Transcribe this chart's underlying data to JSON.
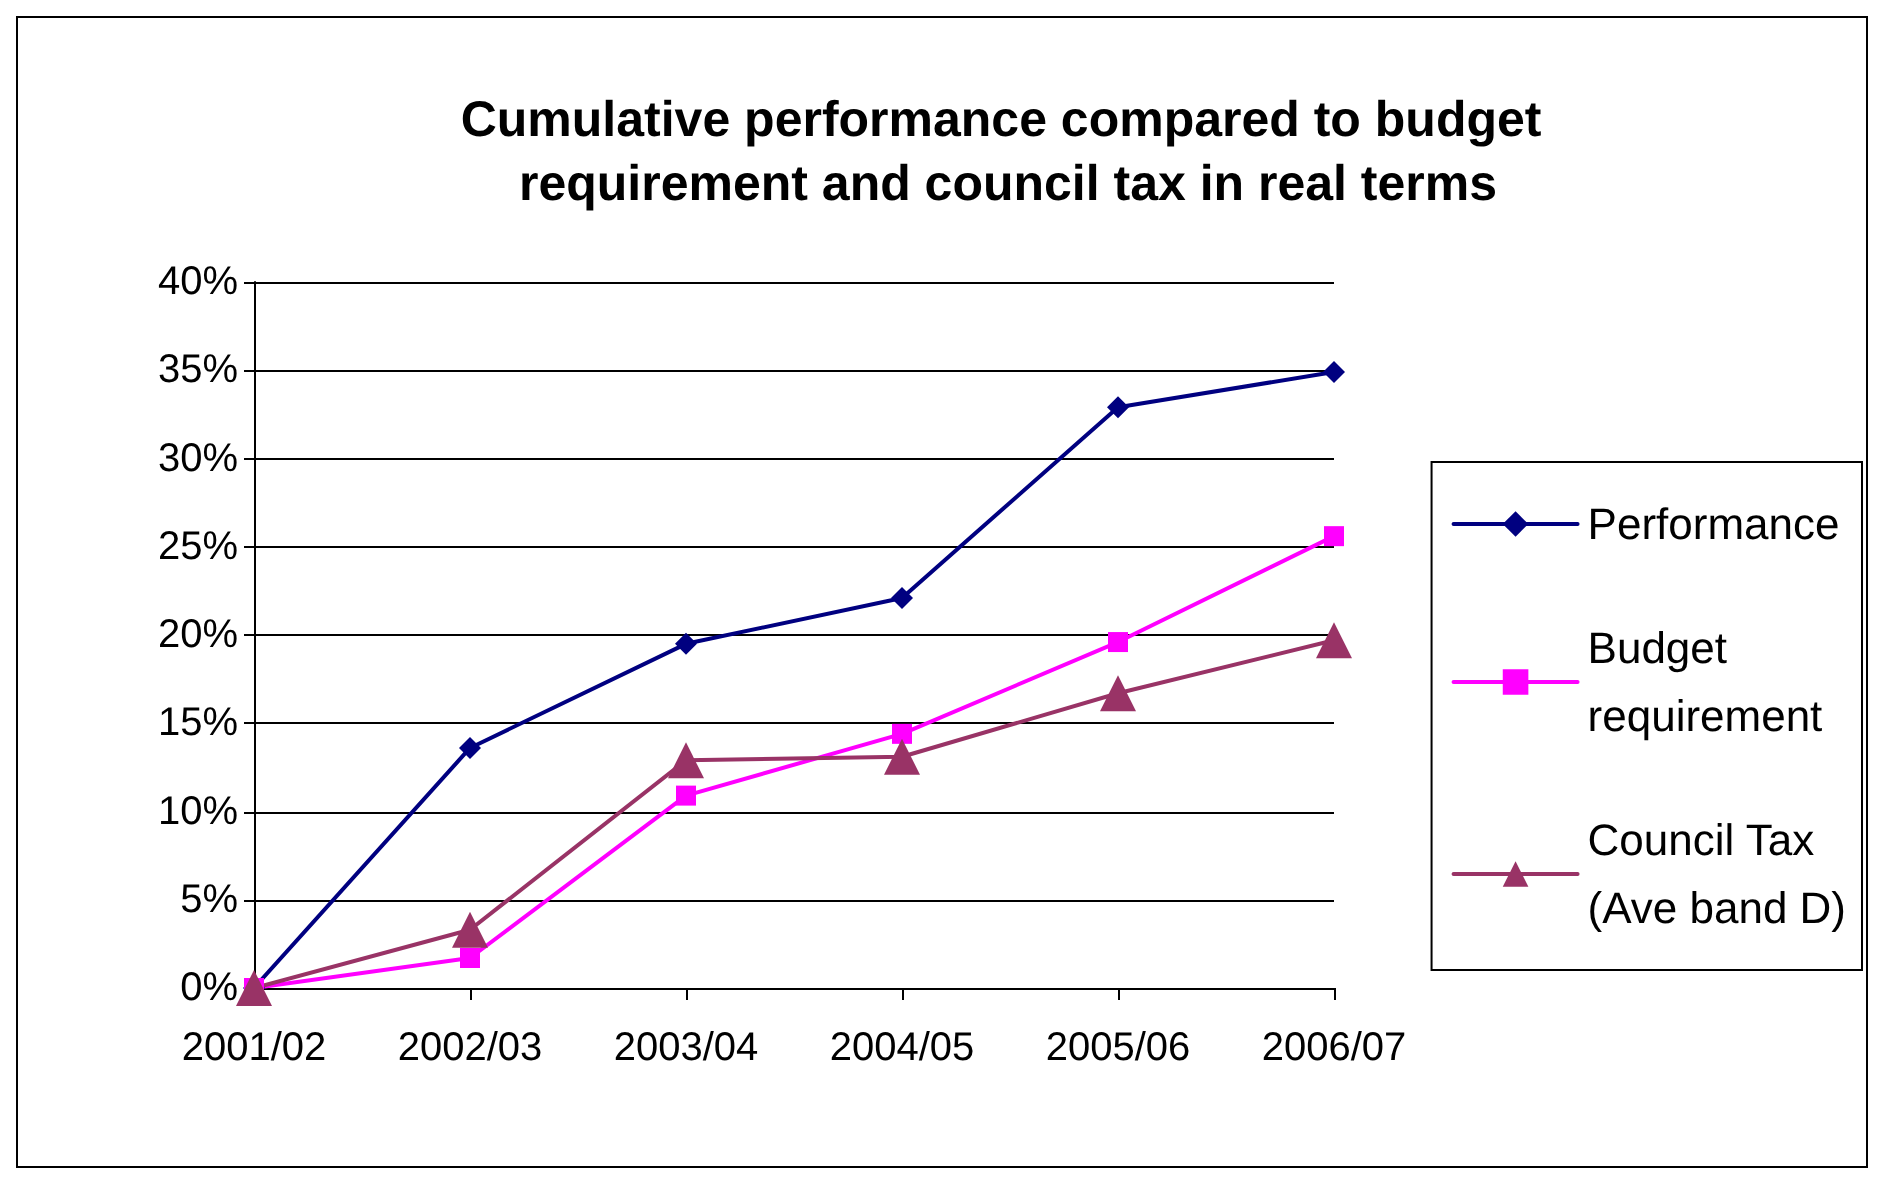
{
  "chart_data": {
    "type": "line",
    "title": "Cumulative performance compared to budget requirement and council tax in real terms",
    "categories": [
      "2001/02",
      "2002/03",
      "2003/04",
      "2004/05",
      "2005/06",
      "2006/07"
    ],
    "series": [
      {
        "name": "Performance",
        "color": "#000080",
        "marker": "diamond",
        "values": [
          0,
          13.6,
          19.5,
          22.1,
          32.9,
          34.9
        ]
      },
      {
        "name": "Budget\nrequirement",
        "color": "#ff00ff",
        "marker": "square",
        "values": [
          0,
          1.7,
          10.9,
          14.4,
          19.6,
          25.6
        ]
      },
      {
        "name": "Council Tax\n(Ave band D)",
        "color": "#993366",
        "marker": "triangle",
        "values": [
          0,
          3.3,
          12.9,
          13.1,
          16.7,
          19.7
        ]
      }
    ],
    "ylim": [
      0,
      40
    ],
    "yticks": [
      {
        "value": 0,
        "label": "0%"
      },
      {
        "value": 5,
        "label": "5%"
      },
      {
        "value": 10,
        "label": "10%"
      },
      {
        "value": 15,
        "label": "15%"
      },
      {
        "value": 20,
        "label": "20%"
      },
      {
        "value": 25,
        "label": "25%"
      },
      {
        "value": 30,
        "label": "30%"
      },
      {
        "value": 35,
        "label": "35%"
      },
      {
        "value": 40,
        "label": "40%"
      }
    ],
    "grid": "y",
    "legend": "right",
    "line_style": "solid"
  }
}
